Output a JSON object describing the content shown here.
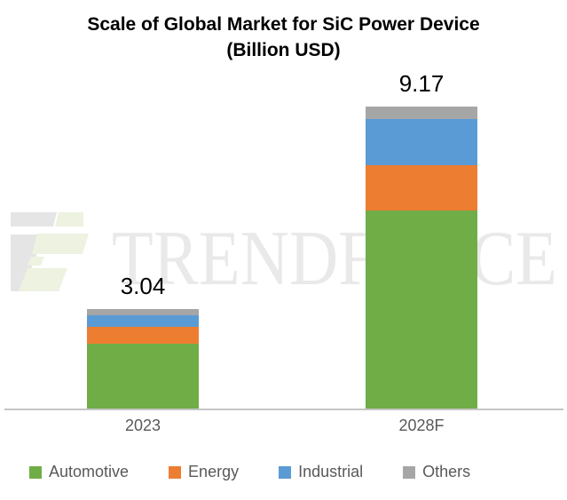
{
  "title": {
    "line1": "Scale of Global Market for SiC Power Device",
    "line2": "(Billion USD)"
  },
  "watermark": {
    "text": "TRENDFORCE"
  },
  "chart_data": {
    "type": "bar",
    "subtype": "stacked-vertical",
    "title": "Scale of Global Market for SiC Power Device",
    "subtitle": "(Billion USD)",
    "unit": "Billion USD",
    "categories": [
      "2023",
      "2028F"
    ],
    "series": [
      {
        "name": "Automotive",
        "color": "#70ad47",
        "values": [
          2.0,
          6.02
        ]
      },
      {
        "name": "Energy",
        "color": "#ed7d31",
        "values": [
          0.49,
          1.36
        ]
      },
      {
        "name": "Industrial",
        "color": "#5b9bd5",
        "values": [
          0.36,
          1.42
        ]
      },
      {
        "name": "Others",
        "color": "#a6a6a6",
        "values": [
          0.19,
          0.37
        ]
      }
    ],
    "stack_order_bottom_to_top": [
      "Automotive",
      "Energy",
      "Industrial",
      "Others"
    ],
    "totals": [
      3.04,
      9.17
    ],
    "total_labels": [
      "3.04",
      "9.17"
    ],
    "ylim": [
      0,
      10
    ],
    "grid": false,
    "y_axis_visible": false,
    "legend_position": "bottom"
  },
  "colors": {
    "axis_line": "#c5c5c5",
    "tick_label": "#595959",
    "legend_label": "#595959",
    "value_label": "#000000",
    "watermark_text": "#e9e9e9",
    "watermark_logo_gray": "#e5e5e5",
    "watermark_logo_green": "#edf2e1"
  }
}
